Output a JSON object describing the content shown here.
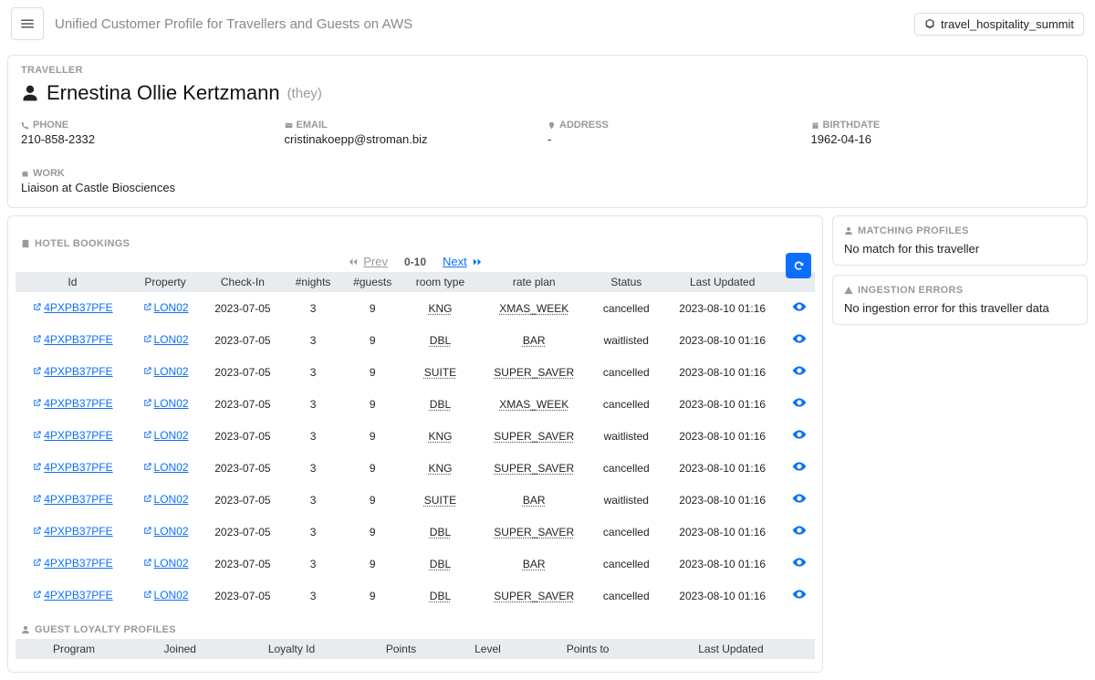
{
  "header": {
    "title": "Unified Customer Profile for Travellers and Guests on AWS",
    "domain": "travel_hospitality_summit"
  },
  "traveller": {
    "section_label": "TRAVELLER",
    "name": "Ernestina Ollie Kertzmann",
    "pronoun": "(they)",
    "phone_label": "PHONE",
    "phone": "210-858-2332",
    "email_label": "EMAIL",
    "email": "cristinakoepp@stroman.biz",
    "address_label": "ADDRESS",
    "address": "-",
    "birthdate_label": "BIRTHDATE",
    "birthdate": "1962-04-16",
    "work_label": "WORK",
    "work": "Liaison at Castle Biosciences"
  },
  "bookings": {
    "section_label": "HOTEL BOOKINGS",
    "pager_prev": "Prev",
    "pager_range": "0-10",
    "pager_next": "Next",
    "columns": [
      "Id",
      "Property",
      "Check-In",
      "#nights",
      "#guests",
      "room type",
      "rate plan",
      "Status",
      "Last Updated",
      ""
    ],
    "rows": [
      {
        "id": "4PXPB37PFE",
        "property": "LON02",
        "checkin": "2023-07-05",
        "nights": "3",
        "guests": "9",
        "room": "KNG",
        "rate": "XMAS_WEEK",
        "status": "cancelled",
        "updated": "2023-08-10 01:16"
      },
      {
        "id": "4PXPB37PFE",
        "property": "LON02",
        "checkin": "2023-07-05",
        "nights": "3",
        "guests": "9",
        "room": "DBL",
        "rate": "BAR",
        "status": "waitlisted",
        "updated": "2023-08-10 01:16"
      },
      {
        "id": "4PXPB37PFE",
        "property": "LON02",
        "checkin": "2023-07-05",
        "nights": "3",
        "guests": "9",
        "room": "SUITE",
        "rate": "SUPER_SAVER",
        "status": "cancelled",
        "updated": "2023-08-10 01:16"
      },
      {
        "id": "4PXPB37PFE",
        "property": "LON02",
        "checkin": "2023-07-05",
        "nights": "3",
        "guests": "9",
        "room": "DBL",
        "rate": "XMAS_WEEK",
        "status": "cancelled",
        "updated": "2023-08-10 01:16"
      },
      {
        "id": "4PXPB37PFE",
        "property": "LON02",
        "checkin": "2023-07-05",
        "nights": "3",
        "guests": "9",
        "room": "KNG",
        "rate": "SUPER_SAVER",
        "status": "waitlisted",
        "updated": "2023-08-10 01:16"
      },
      {
        "id": "4PXPB37PFE",
        "property": "LON02",
        "checkin": "2023-07-05",
        "nights": "3",
        "guests": "9",
        "room": "KNG",
        "rate": "SUPER_SAVER",
        "status": "cancelled",
        "updated": "2023-08-10 01:16"
      },
      {
        "id": "4PXPB37PFE",
        "property": "LON02",
        "checkin": "2023-07-05",
        "nights": "3",
        "guests": "9",
        "room": "SUITE",
        "rate": "BAR",
        "status": "waitlisted",
        "updated": "2023-08-10 01:16"
      },
      {
        "id": "4PXPB37PFE",
        "property": "LON02",
        "checkin": "2023-07-05",
        "nights": "3",
        "guests": "9",
        "room": "DBL",
        "rate": "SUPER_SAVER",
        "status": "cancelled",
        "updated": "2023-08-10 01:16"
      },
      {
        "id": "4PXPB37PFE",
        "property": "LON02",
        "checkin": "2023-07-05",
        "nights": "3",
        "guests": "9",
        "room": "DBL",
        "rate": "BAR",
        "status": "cancelled",
        "updated": "2023-08-10 01:16"
      },
      {
        "id": "4PXPB37PFE",
        "property": "LON02",
        "checkin": "2023-07-05",
        "nights": "3",
        "guests": "9",
        "room": "DBL",
        "rate": "SUPER_SAVER",
        "status": "cancelled",
        "updated": "2023-08-10 01:16"
      }
    ]
  },
  "loyalty": {
    "section_label": "GUEST LOYALTY PROFILES",
    "columns": [
      "Program",
      "Joined",
      "Loyalty Id",
      "Points",
      "Level",
      "Points to",
      "Last Updated"
    ]
  },
  "matching": {
    "label": "MATCHING PROFILES",
    "text": "No match for this traveller"
  },
  "ingestion": {
    "label": "INGESTION ERRORS",
    "text": "No ingestion error for this traveller data"
  }
}
